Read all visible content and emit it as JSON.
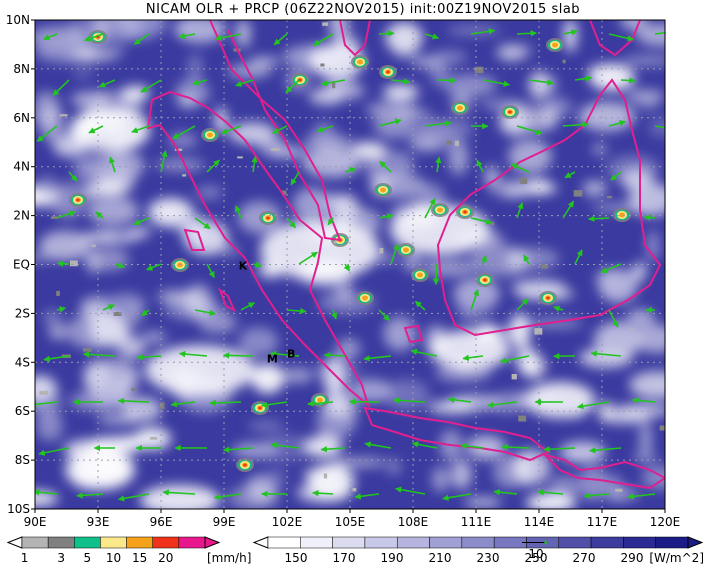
{
  "title": "NICAM OLR + PRCP (06Z22NOV2015) init:00Z19NOV2015 slab",
  "map": {
    "lon_range": [
      90,
      120
    ],
    "lat_range": [
      -10,
      10
    ],
    "lon_labels": [
      "90E",
      "93E",
      "96E",
      "99E",
      "102E",
      "105E",
      "108E",
      "111E",
      "114E",
      "117E",
      "120E"
    ],
    "lat_labels": [
      "10N",
      "8N",
      "6N",
      "4N",
      "2N",
      "EQ",
      "2S",
      "4S",
      "6S",
      "8S",
      "10S"
    ],
    "markers": [
      {
        "text": "K",
        "lon": 99.9,
        "lat": -0.2
      },
      {
        "text": "B",
        "lon": 102.2,
        "lat": -3.8
      },
      {
        "text": "M",
        "lon": 101.3,
        "lat": -4.0
      }
    ],
    "coastline_color": "#e0208f",
    "wind_color": "#22c41f"
  },
  "precip_colorbar": {
    "ticks": [
      "1",
      "3",
      "5",
      "10",
      "15",
      "20"
    ],
    "unit": "[mm/h]",
    "colors": [
      "#b4b4b4",
      "#808080",
      "#10c08a",
      "#fbe88a",
      "#f7a21d",
      "#f0321a",
      "#e8188c"
    ]
  },
  "olr_colorbar": {
    "ticks": [
      "150",
      "170",
      "190",
      "210",
      "230",
      "250",
      "270",
      "290"
    ],
    "unit": "[W/m^2]",
    "ref_vector_label": "10",
    "colors": [
      "#ffffff",
      "#f0f0fa",
      "#dcdcf0",
      "#c8c8e8",
      "#b4b4de",
      "#a0a0d4",
      "#8c8cca",
      "#7878c0",
      "#6464b4",
      "#5050a8",
      "#3c3c9e",
      "#2a2a92",
      "#1c1c88"
    ]
  }
}
